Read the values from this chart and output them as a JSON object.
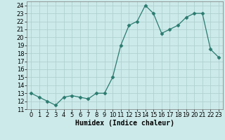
{
  "xlabel": "Humidex (Indice chaleur)",
  "x": [
    0,
    1,
    2,
    3,
    4,
    5,
    6,
    7,
    8,
    9,
    10,
    11,
    12,
    13,
    14,
    15,
    16,
    17,
    18,
    19,
    20,
    21,
    22,
    23
  ],
  "y": [
    13.0,
    12.5,
    12.0,
    11.5,
    12.5,
    12.7,
    12.5,
    12.3,
    13.0,
    13.0,
    15.0,
    19.0,
    21.5,
    22.0,
    24.0,
    23.0,
    20.5,
    21.0,
    21.5,
    22.5,
    23.0,
    23.0,
    18.5,
    17.5
  ],
  "line_color": "#2a7b6f",
  "marker": "D",
  "marker_size": 2.5,
  "background_color": "#cdeaea",
  "grid_color": "#b0d0d0",
  "ylim": [
    11,
    24.5
  ],
  "xlim": [
    -0.5,
    23.5
  ],
  "yticks": [
    11,
    12,
    13,
    14,
    15,
    16,
    17,
    18,
    19,
    20,
    21,
    22,
    23,
    24
  ],
  "xticks": [
    0,
    1,
    2,
    3,
    4,
    5,
    6,
    7,
    8,
    9,
    10,
    11,
    12,
    13,
    14,
    15,
    16,
    17,
    18,
    19,
    20,
    21,
    22,
    23
  ],
  "xlabel_fontsize": 7,
  "tick_fontsize": 6
}
